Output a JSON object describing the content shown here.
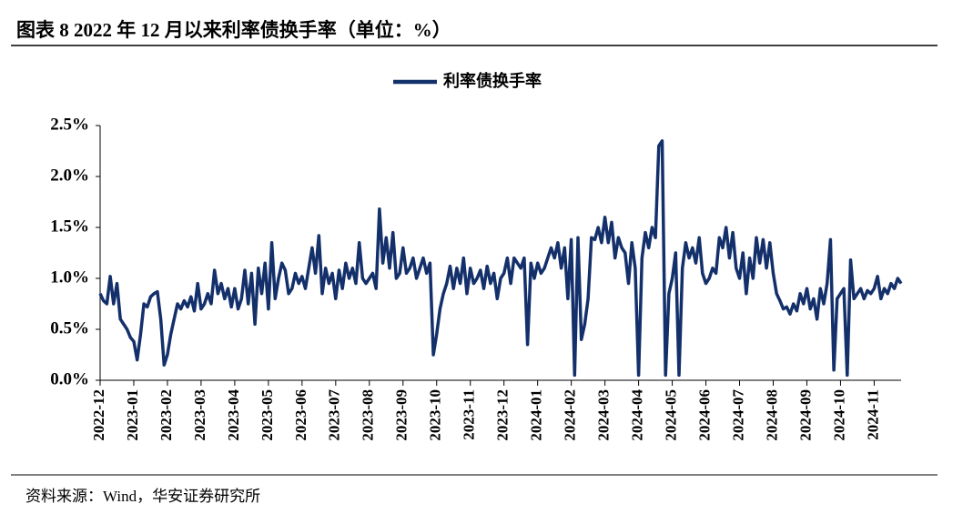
{
  "title": "图表 8 2022 年 12 月以来利率债换手率（单位：%）",
  "source": "资料来源：Wind，华安证券研究所",
  "chart_data": {
    "type": "line",
    "series": [
      {
        "name": "利率债换手率",
        "color": "#14306b",
        "values": [
          0.85,
          0.78,
          0.75,
          1.02,
          0.75,
          0.95,
          0.6,
          0.55,
          0.5,
          0.42,
          0.38,
          0.2,
          0.45,
          0.75,
          0.72,
          0.82,
          0.85,
          0.87,
          0.6,
          0.15,
          0.25,
          0.45,
          0.6,
          0.75,
          0.7,
          0.78,
          0.72,
          0.82,
          0.68,
          0.95,
          0.7,
          0.75,
          0.85,
          0.75,
          1.08,
          0.85,
          0.95,
          0.8,
          0.9,
          0.72,
          0.9,
          0.7,
          0.8,
          1.08,
          0.75,
          1.05,
          0.55,
          1.1,
          0.85,
          1.15,
          0.7,
          1.35,
          0.8,
          1.0,
          1.15,
          1.08,
          0.85,
          0.9,
          1.05,
          0.95,
          1.02,
          0.9,
          1.1,
          1.3,
          1.05,
          1.42,
          0.85,
          1.1,
          0.95,
          1.05,
          0.8,
          1.08,
          0.9,
          1.15,
          1.0,
          1.1,
          0.95,
          1.35,
          1.0,
          0.95,
          1.0,
          1.05,
          0.9,
          1.68,
          1.15,
          1.4,
          1.1,
          1.45,
          1.0,
          1.05,
          1.3,
          1.05,
          1.1,
          1.2,
          1.0,
          1.1,
          1.2,
          1.05,
          1.15,
          0.25,
          0.45,
          0.7,
          0.85,
          0.95,
          1.12,
          0.9,
          1.1,
          0.95,
          1.2,
          0.85,
          1.1,
          0.95,
          1.0,
          1.08,
          0.9,
          1.12,
          0.95,
          1.05,
          0.8,
          1.0,
          1.05,
          1.2,
          0.95,
          1.2,
          1.15,
          1.1,
          1.2,
          0.35,
          1.15,
          1.0,
          1.15,
          1.05,
          1.1,
          1.2,
          1.3,
          1.2,
          1.35,
          1.1,
          1.3,
          0.8,
          1.38,
          0.05,
          1.4,
          0.4,
          0.55,
          0.8,
          1.4,
          1.38,
          1.5,
          1.35,
          1.6,
          1.35,
          1.55,
          1.2,
          1.4,
          1.3,
          1.25,
          0.95,
          1.35,
          1.1,
          0.05,
          1.2,
          1.45,
          1.3,
          1.5,
          1.4,
          2.3,
          2.35,
          0.05,
          0.85,
          1.0,
          1.25,
          0.05,
          1.1,
          1.35,
          1.2,
          1.3,
          1.15,
          1.4,
          1.05,
          0.95,
          1.0,
          1.1,
          1.05,
          1.4,
          1.3,
          1.5,
          1.2,
          1.45,
          1.1,
          1.0,
          1.25,
          0.85,
          1.2,
          1.0,
          1.4,
          1.15,
          1.38,
          1.1,
          1.35,
          1.05,
          0.85,
          0.78,
          0.7,
          0.72,
          0.65,
          0.75,
          0.68,
          0.85,
          0.75,
          0.9,
          0.7,
          0.8,
          0.6,
          0.9,
          0.75,
          0.95,
          1.38,
          0.1,
          0.8,
          0.85,
          0.9,
          0.05,
          1.18,
          0.8,
          0.85,
          0.9,
          0.8,
          0.88,
          0.85,
          0.9,
          1.02,
          0.8,
          0.9,
          0.85,
          0.95,
          0.9,
          1.0,
          0.95
        ]
      }
    ],
    "xlim": [
      0,
      238
    ],
    "xticks": [
      {
        "value": 0,
        "label": "2022-12"
      },
      {
        "value": 10,
        "label": "2023-01"
      },
      {
        "value": 20,
        "label": "2023-02"
      },
      {
        "value": 30,
        "label": "2023-03"
      },
      {
        "value": 40,
        "label": "2023-04"
      },
      {
        "value": 50,
        "label": "2023-05"
      },
      {
        "value": 60,
        "label": "2023-06"
      },
      {
        "value": 70,
        "label": "2023-07"
      },
      {
        "value": 80,
        "label": "2023-08"
      },
      {
        "value": 90,
        "label": "2023-09"
      },
      {
        "value": 100,
        "label": "2023-10"
      },
      {
        "value": 110,
        "label": "2023-11"
      },
      {
        "value": 120,
        "label": "2023-12"
      },
      {
        "value": 130,
        "label": "2024-01"
      },
      {
        "value": 140,
        "label": "2024-02"
      },
      {
        "value": 150,
        "label": "2024-03"
      },
      {
        "value": 160,
        "label": "2024-04"
      },
      {
        "value": 170,
        "label": "2024-05"
      },
      {
        "value": 180,
        "label": "2024-06"
      },
      {
        "value": 190,
        "label": "2024-07"
      },
      {
        "value": 200,
        "label": "2024-08"
      },
      {
        "value": 210,
        "label": "2024-09"
      },
      {
        "value": 220,
        "label": "2024-10"
      },
      {
        "value": 230,
        "label": "2024-11"
      }
    ],
    "ylim": [
      0,
      2.5
    ],
    "yticks": [
      {
        "value": 0,
        "label": "0.0%"
      },
      {
        "value": 0.5,
        "label": "0.5%"
      },
      {
        "value": 1,
        "label": "1.0%"
      },
      {
        "value": 1.5,
        "label": "1.5%"
      },
      {
        "value": 2,
        "label": "2.0%"
      },
      {
        "value": 2.5,
        "label": "2.5%"
      }
    ],
    "legend": "top"
  }
}
